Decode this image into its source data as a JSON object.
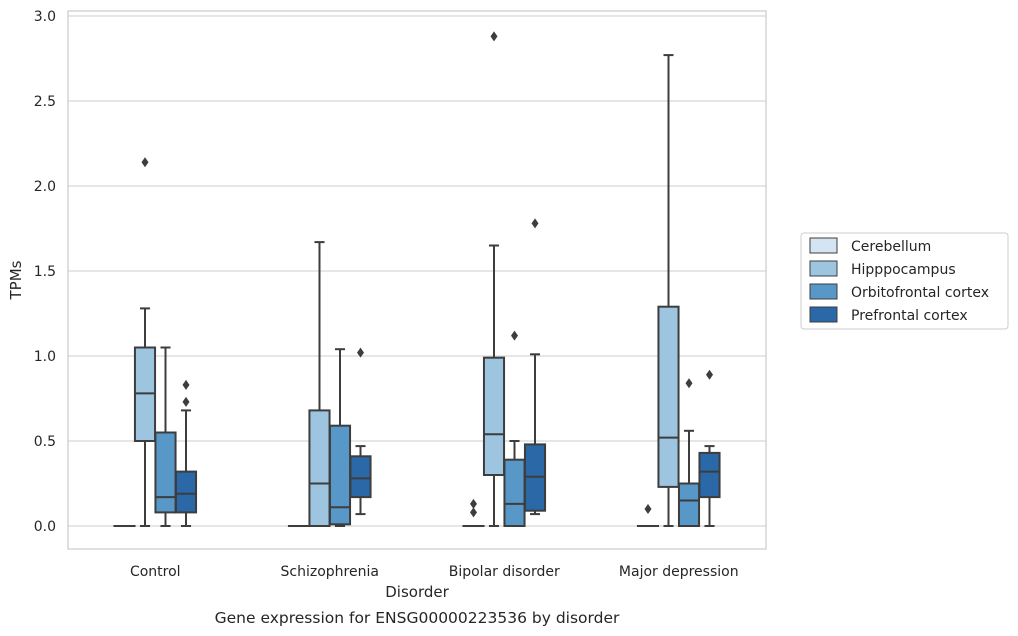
{
  "chart_data": {
    "type": "box",
    "title": "",
    "caption": "Gene expression for ENSG00000223536 by disorder",
    "xlabel": "Disorder",
    "ylabel": "TPMs",
    "ylim": [
      -0.14,
      3.03
    ],
    "yticks": [
      "0.0",
      "0.5",
      "1.0",
      "1.5",
      "2.0",
      "2.5",
      "3.0"
    ],
    "grid": "horizontal",
    "legend_position": "right",
    "categories": [
      "Control",
      "Schizophrenia",
      "Bipolar disorder",
      "Major depression"
    ],
    "series": [
      {
        "name": "Cerebellum",
        "color": "#d4e4f2",
        "boxes": [
          {
            "whislo": 0,
            "q1": 0,
            "med": 0,
            "q3": 0,
            "whishi": 0,
            "fliers": []
          },
          {
            "whislo": 0,
            "q1": 0,
            "med": 0,
            "q3": 0,
            "whishi": 0,
            "fliers": []
          },
          {
            "whislo": 0,
            "q1": 0,
            "med": 0,
            "q3": 0,
            "whishi": 0,
            "fliers": [
              0.08,
              0.13
            ]
          },
          {
            "whislo": 0,
            "q1": 0,
            "med": 0,
            "q3": 0,
            "whishi": 0,
            "fliers": [
              0.1
            ]
          }
        ]
      },
      {
        "name": "Hipppocampus",
        "color": "#9dc5df",
        "boxes": [
          {
            "whislo": 0,
            "q1": 0.5,
            "med": 0.78,
            "q3": 1.05,
            "whishi": 1.28,
            "fliers": [
              2.14
            ]
          },
          {
            "whislo": 0,
            "q1": 0,
            "med": 0.25,
            "q3": 0.68,
            "whishi": 1.67,
            "fliers": []
          },
          {
            "whislo": 0,
            "q1": 0.3,
            "med": 0.54,
            "q3": 0.99,
            "whishi": 1.65,
            "fliers": [
              2.88
            ]
          },
          {
            "whislo": 0,
            "q1": 0.23,
            "med": 0.52,
            "q3": 1.29,
            "whishi": 2.77,
            "fliers": []
          }
        ]
      },
      {
        "name": "Orbitofrontal cortex",
        "color": "#5898c8",
        "boxes": [
          {
            "whislo": 0,
            "q1": 0.08,
            "med": 0.17,
            "q3": 0.55,
            "whishi": 1.05,
            "fliers": []
          },
          {
            "whislo": 0,
            "q1": 0.01,
            "med": 0.11,
            "q3": 0.59,
            "whishi": 1.04,
            "fliers": []
          },
          {
            "whislo": 0,
            "q1": 0,
            "med": 0.13,
            "q3": 0.39,
            "whishi": 0.5,
            "fliers": [
              1.12
            ]
          },
          {
            "whislo": 0,
            "q1": 0,
            "med": 0.15,
            "q3": 0.25,
            "whishi": 0.56,
            "fliers": [
              0.84
            ]
          }
        ]
      },
      {
        "name": "Prefrontal cortex",
        "color": "#2a68a8",
        "boxes": [
          {
            "whislo": 0,
            "q1": 0.08,
            "med": 0.19,
            "q3": 0.32,
            "whishi": 0.68,
            "fliers": [
              0.73,
              0.83
            ]
          },
          {
            "whislo": 0.07,
            "q1": 0.17,
            "med": 0.28,
            "q3": 0.41,
            "whishi": 0.47,
            "fliers": [
              1.02
            ]
          },
          {
            "whislo": 0.07,
            "q1": 0.09,
            "med": 0.29,
            "q3": 0.48,
            "whishi": 1.01,
            "fliers": [
              1.78
            ]
          },
          {
            "whislo": 0,
            "q1": 0.17,
            "med": 0.32,
            "q3": 0.43,
            "whishi": 0.47,
            "fliers": [
              0.89
            ]
          }
        ]
      }
    ]
  }
}
